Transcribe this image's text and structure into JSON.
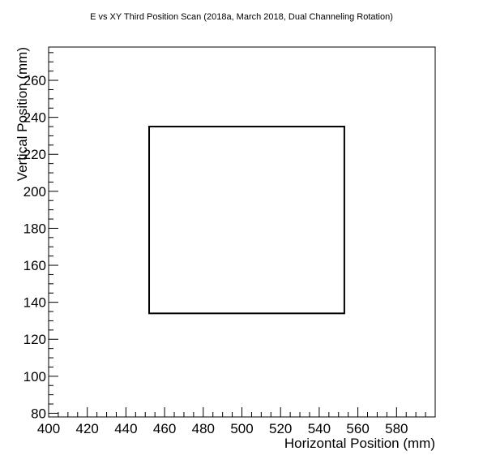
{
  "chart_data": {
    "type": "scatter",
    "title": "E vs XY Third Position Scan (2018a, March 2018, Dual Channeling Rotation)",
    "xlabel": "Horizontal Position (mm)",
    "ylabel": "Vertical Position (mm)",
    "xlim": [
      400,
      600
    ],
    "ylim": [
      78,
      278
    ],
    "x_ticks": [
      400,
      420,
      440,
      460,
      480,
      500,
      520,
      540,
      560,
      580
    ],
    "y_ticks": [
      80,
      100,
      120,
      140,
      160,
      180,
      200,
      220,
      240,
      260
    ],
    "grid": false,
    "legend": "none",
    "shapes": [
      {
        "kind": "rectangle",
        "x": [
          452,
          553
        ],
        "y": [
          134,
          235
        ]
      }
    ]
  }
}
